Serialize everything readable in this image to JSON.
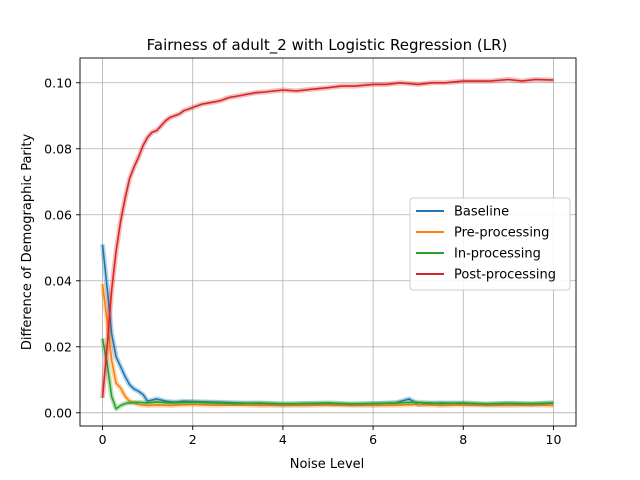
{
  "chart_data": {
    "type": "line",
    "title": "Fairness of adult_2 with Logistic Regression (LR)",
    "xlabel": "Noise Level",
    "ylabel": "Difference of Demographic Parity",
    "xlim": [
      -0.5,
      10.5
    ],
    "ylim": [
      -0.004,
      0.1075
    ],
    "xticks": [
      0,
      2,
      4,
      6,
      8,
      10
    ],
    "xtick_labels": [
      "0",
      "2",
      "4",
      "6",
      "8",
      "10"
    ],
    "yticks": [
      0.0,
      0.02,
      0.04,
      0.06,
      0.08,
      0.1
    ],
    "ytick_labels": [
      "0.00",
      "0.02",
      "0.04",
      "0.06",
      "0.08",
      "0.10"
    ],
    "grid": true,
    "legend_position": "center-right",
    "series": [
      {
        "name": "Baseline",
        "color": "#1f77b4",
        "x": [
          0,
          0.1,
          0.2,
          0.3,
          0.4,
          0.5,
          0.6,
          0.7,
          0.8,
          0.9,
          1.0,
          1.2,
          1.4,
          1.6,
          1.8,
          2.0,
          2.5,
          3.0,
          3.5,
          4.0,
          4.5,
          5.0,
          5.5,
          6.0,
          6.5,
          6.8,
          7.0,
          7.5,
          8.0,
          8.5,
          9.0,
          9.5,
          10.0
        ],
        "y": [
          0.051,
          0.038,
          0.024,
          0.017,
          0.014,
          0.011,
          0.0085,
          0.0072,
          0.0065,
          0.0055,
          0.0035,
          0.0042,
          0.0035,
          0.0032,
          0.0035,
          0.0034,
          0.0032,
          0.003,
          0.0028,
          0.0026,
          0.0028,
          0.0027,
          0.0025,
          0.0028,
          0.003,
          0.0042,
          0.0025,
          0.003,
          0.0028,
          0.0025,
          0.0028,
          0.0025,
          0.003
        ]
      },
      {
        "name": "Pre-processing",
        "color": "#ff7f0e",
        "x": [
          0,
          0.1,
          0.2,
          0.3,
          0.4,
          0.5,
          0.6,
          0.8,
          1.0,
          1.2,
          1.5,
          2.0,
          2.5,
          3.0,
          3.5,
          4.0,
          4.5,
          5.0,
          5.5,
          6.0,
          6.5,
          7.0,
          7.5,
          8.0,
          8.5,
          9.0,
          9.5,
          10.0
        ],
        "y": [
          0.039,
          0.028,
          0.016,
          0.009,
          0.0075,
          0.005,
          0.0035,
          0.0025,
          0.0022,
          0.0024,
          0.0022,
          0.0025,
          0.0023,
          0.0024,
          0.0022,
          0.0023,
          0.0022,
          0.0024,
          0.0023,
          0.0022,
          0.0023,
          0.0025,
          0.0022,
          0.0024,
          0.0023,
          0.0022,
          0.0024,
          0.0022
        ]
      },
      {
        "name": "In-processing",
        "color": "#2ca02c",
        "x": [
          0,
          0.1,
          0.2,
          0.3,
          0.4,
          0.5,
          0.6,
          0.8,
          1.0,
          1.2,
          1.5,
          2.0,
          2.5,
          3.0,
          3.5,
          4.0,
          4.5,
          5.0,
          5.5,
          6.0,
          6.5,
          7.0,
          7.5,
          8.0,
          8.5,
          9.0,
          9.5,
          10.0
        ],
        "y": [
          0.0225,
          0.015,
          0.005,
          0.0012,
          0.0022,
          0.0028,
          0.003,
          0.0032,
          0.003,
          0.0033,
          0.003,
          0.0032,
          0.003,
          0.0028,
          0.003,
          0.0027,
          0.0028,
          0.003,
          0.0027,
          0.0028,
          0.003,
          0.0032,
          0.0028,
          0.003,
          0.0027,
          0.0029,
          0.0028,
          0.003
        ]
      },
      {
        "name": "Post-processing",
        "color": "#d62728",
        "x": [
          0,
          0.1,
          0.2,
          0.3,
          0.4,
          0.5,
          0.6,
          0.7,
          0.8,
          0.9,
          1.0,
          1.1,
          1.2,
          1.3,
          1.4,
          1.5,
          1.6,
          1.7,
          1.8,
          1.9,
          2.0,
          2.2,
          2.4,
          2.6,
          2.8,
          3.0,
          3.2,
          3.4,
          3.6,
          3.8,
          4.0,
          4.3,
          4.6,
          5.0,
          5.3,
          5.6,
          6.0,
          6.3,
          6.6,
          7.0,
          7.3,
          7.6,
          8.0,
          8.3,
          8.6,
          9.0,
          9.3,
          9.6,
          10.0
        ],
        "y": [
          0.0045,
          0.02,
          0.037,
          0.049,
          0.058,
          0.065,
          0.071,
          0.0745,
          0.0775,
          0.081,
          0.0835,
          0.085,
          0.0855,
          0.087,
          0.0885,
          0.0895,
          0.09,
          0.0905,
          0.0915,
          0.092,
          0.0925,
          0.0935,
          0.094,
          0.0945,
          0.0955,
          0.096,
          0.0965,
          0.097,
          0.0972,
          0.0975,
          0.0978,
          0.0975,
          0.098,
          0.0985,
          0.099,
          0.099,
          0.0995,
          0.0995,
          0.1,
          0.0995,
          0.1,
          0.1,
          0.1005,
          0.1005,
          0.1005,
          0.101,
          0.1005,
          0.101,
          0.1008
        ]
      }
    ]
  }
}
